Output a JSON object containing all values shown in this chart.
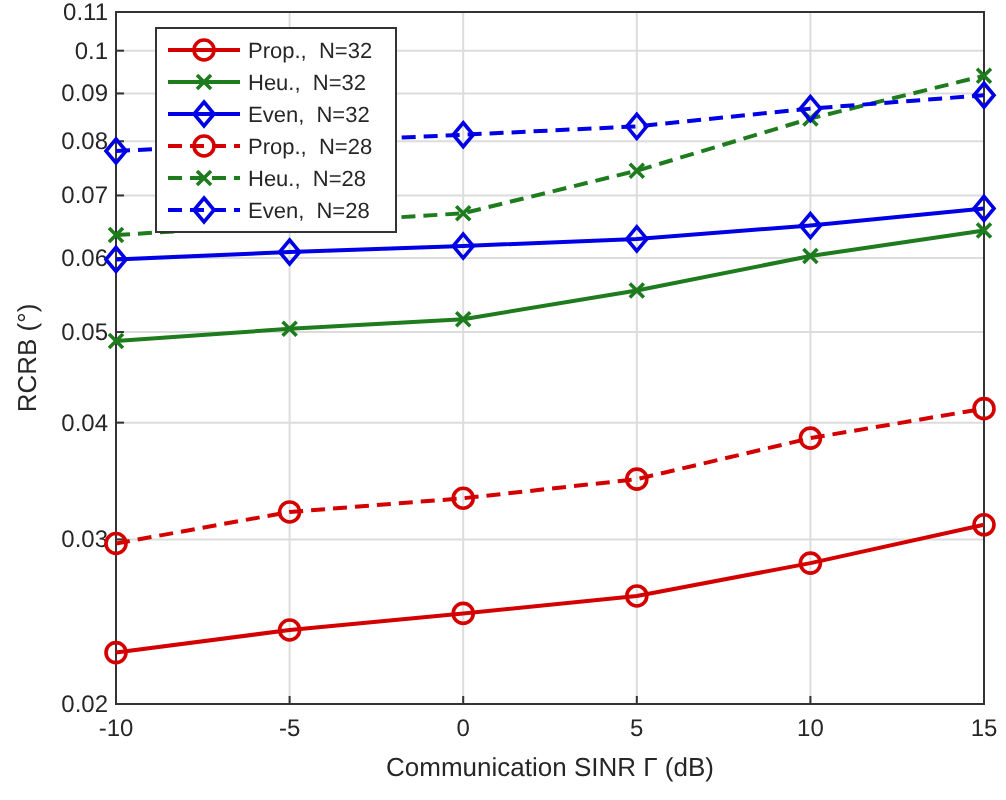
{
  "chart_data": {
    "type": "line",
    "xlabel": "Communication SINR Γ (dB)",
    "ylabel": "RCRB (°)",
    "x": [
      -10,
      -5,
      0,
      5,
      10,
      15
    ],
    "xlim": [
      -10,
      15
    ],
    "xticks": [
      -10,
      -5,
      0,
      5,
      10,
      15
    ],
    "ylim": [
      0.02,
      0.11
    ],
    "yticks": [
      0.02,
      0.03,
      0.04,
      0.05,
      0.06,
      0.07,
      0.08,
      0.09,
      0.1,
      0.11
    ],
    "log": true,
    "grid": true,
    "legend": "top left",
    "series": [
      {
        "name": "Prop.,  N=32",
        "color": "#d40000",
        "marker": "circle",
        "line_style": "solid",
        "values": [
          0.0227,
          0.024,
          0.025,
          0.0261,
          0.0283,
          0.0311
        ]
      },
      {
        "name": "Heu.,  N=32",
        "color": "#1e7b1e",
        "marker": "cross",
        "line_style": "solid",
        "values": [
          0.0489,
          0.0504,
          0.0516,
          0.0554,
          0.0603,
          0.0642
        ]
      },
      {
        "name": "Even,  N=32",
        "color": "#0000e6",
        "marker": "diamond",
        "line_style": "solid",
        "values": [
          0.0598,
          0.0609,
          0.0618,
          0.0629,
          0.065,
          0.0678
        ]
      },
      {
        "name": "Prop.,  N=28",
        "color": "#d40000",
        "marker": "circle",
        "line_style": "dashed",
        "values": [
          0.0297,
          0.0321,
          0.0332,
          0.0348,
          0.0385,
          0.0414
        ]
      },
      {
        "name": "Heu.,  N=28",
        "color": "#1e7b1e",
        "marker": "cross",
        "line_style": "dashed",
        "values": [
          0.0635,
          null,
          0.067,
          0.0744,
          0.0846,
          0.094
        ]
      },
      {
        "name": "Even,  N=28",
        "color": "#0000e6",
        "marker": "diamond",
        "line_style": "dashed",
        "values": [
          0.0781,
          null,
          0.0813,
          0.083,
          0.0867,
          0.0896
        ]
      }
    ]
  }
}
